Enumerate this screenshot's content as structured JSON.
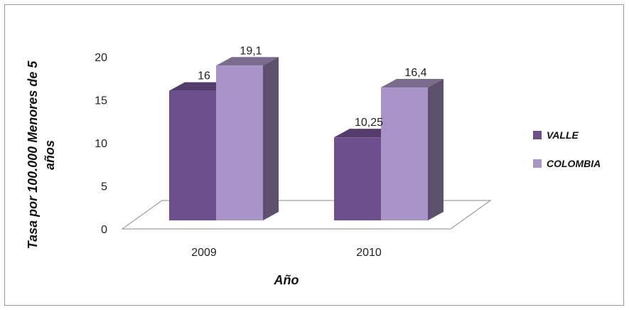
{
  "chart_data": {
    "type": "bar",
    "categories": [
      "2009",
      "2010"
    ],
    "series": [
      {
        "name": "VALLE",
        "values": [
          16,
          10.25
        ],
        "labels": [
          "16",
          "10,25"
        ],
        "color": "#6e4f8e"
      },
      {
        "name": "COLOMBIA",
        "values": [
          19.1,
          16.4
        ],
        "labels": [
          "19,1",
          "16,4"
        ],
        "color": "#a994c7"
      }
    ],
    "xlabel": "Año",
    "ylabel_lines": [
      "Tasa por 100.000 Menores de 5",
      "años"
    ],
    "ylim": [
      0,
      20
    ],
    "yticks": [
      "0",
      "5",
      "10",
      "15",
      "20"
    ],
    "legend_position": "right",
    "grid": false,
    "three_d": true
  }
}
